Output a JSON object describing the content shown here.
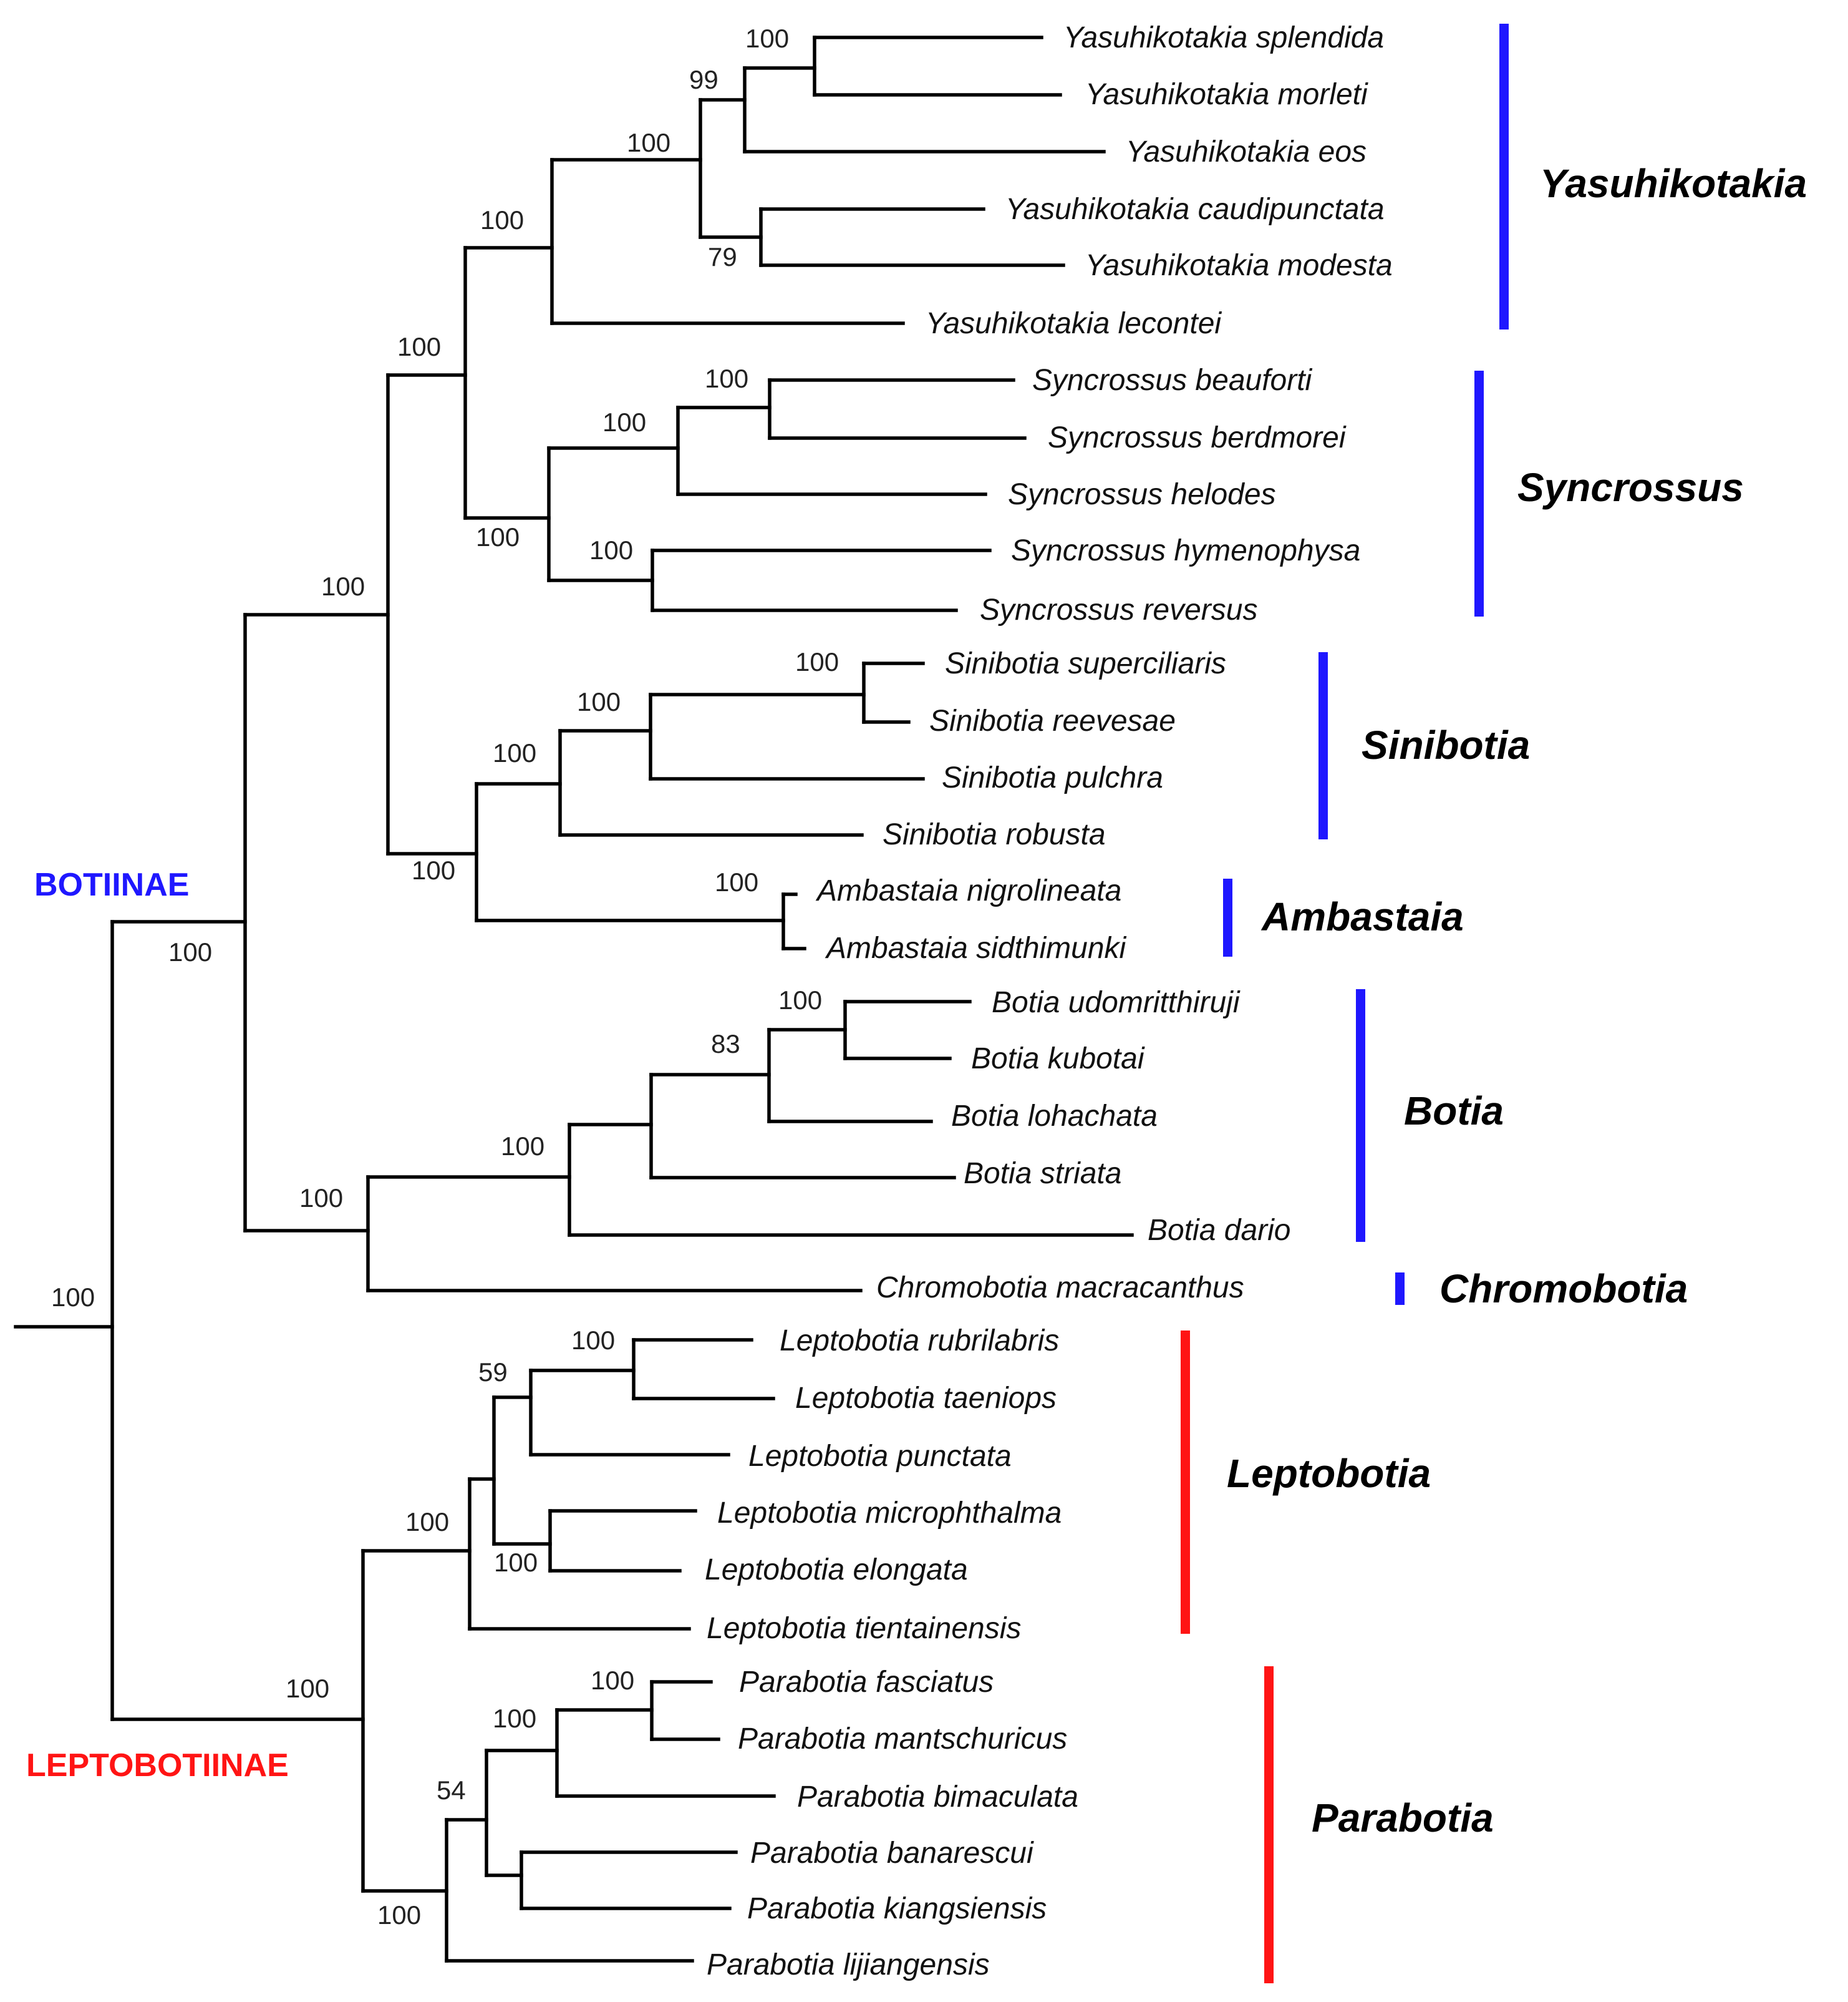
{
  "colors": {
    "botiinae": "#1f17ff",
    "leptobotiinae": "#ff1414",
    "branch": "#000000"
  },
  "subfamilies": {
    "botiinae": "BOTIINAE",
    "leptobotiinae": "LEPTOBOTIINAE"
  },
  "genera": {
    "yasuhikotakia": "Yasuhikotakia",
    "syncrossus": "Syncrossus",
    "sinibotia": "Sinibotia",
    "ambastaia": "Ambastaia",
    "botia": "Botia",
    "chromobotia": "Chromobotia",
    "leptobotia": "Leptobotia",
    "parabotia": "Parabotia"
  },
  "taxa": [
    "Yasuhikotakia splendida",
    "Yasuhikotakia morleti",
    "Yasuhikotakia eos",
    "Yasuhikotakia caudipunctata",
    "Yasuhikotakia modesta",
    "Yasuhikotakia lecontei",
    "Syncrossus beauforti",
    "Syncrossus berdmorei",
    "Syncrossus helodes",
    "Syncrossus hymenophysa",
    "Syncrossus reversus",
    "Sinibotia superciliaris",
    "Sinibotia reevesae",
    "Sinibotia pulchra",
    "Sinibotia robusta",
    "Ambastaia nigrolineata",
    "Ambastaia sidthimunki",
    "Botia udomritthiruji",
    "Botia kubotai",
    "Botia lohachata",
    "Botia striata",
    "Botia dario",
    "Chromobotia macracanthus",
    "Leptobotia rubrilabris",
    "Leptobotia taeniops",
    "Leptobotia punctata",
    "Leptobotia microphthalma",
    "Leptobotia elongata",
    "Leptobotia tientainensis",
    "Parabotia fasciatus",
    "Parabotia mantschuricus",
    "Parabotia bimaculata",
    "Parabotia banarescui",
    "Parabotia kiangsiensis",
    "Parabotia lijiangensis"
  ],
  "support": {
    "root": "100",
    "botiinae": "100",
    "botiinae_core": "100",
    "yasu_sync": "100",
    "yasuhikotakia": "100",
    "yasu_a": "100",
    "yasu_b": "99",
    "yasu_c": "100",
    "yasu_d": "79",
    "syncrossus": "100",
    "sync_a": "100",
    "sync_b": "100",
    "sync_c": "100",
    "sini_amba": "100",
    "sinibotia": "100",
    "sini_a": "100",
    "sini_b": "100",
    "ambastaia": "100",
    "botia_chromo": "100",
    "botia": "100",
    "botia_a": "83",
    "botia_b": "100",
    "leptobotiinae": "100",
    "leptobotia": "100",
    "lepto_a": "59",
    "lepto_b": "100",
    "lepto_c": "100",
    "parabotia": "100",
    "para_a": "54",
    "para_b": "100",
    "para_c": "100"
  }
}
